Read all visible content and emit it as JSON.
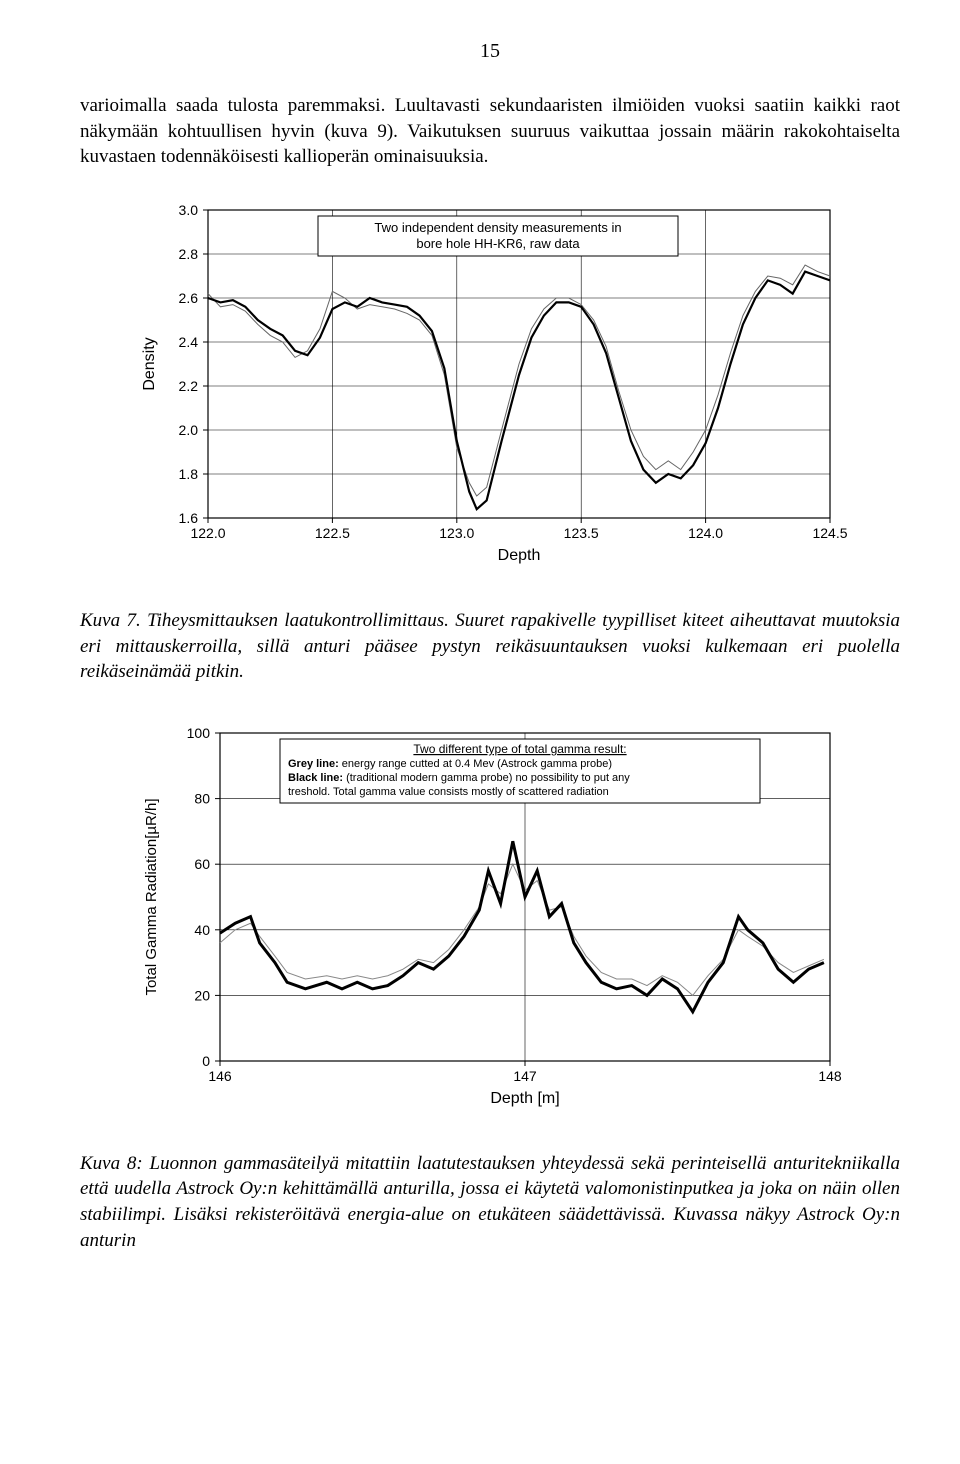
{
  "page_number": "15",
  "paragraph1": "varioimalla saada tulosta paremmaksi. Luultavasti sekundaaristen ilmiöiden vuoksi saatiin kaikki raot näkymään kohtuullisen hyvin (kuva 9). Vaikutuksen suuruus vaikuttaa jossain määrin rakokohtaiselta kuvastaen todennäköisesti kallioperän ominaisuuksia.",
  "chart1": {
    "type": "line",
    "title_box": {
      "line1": "Two independent density measurements in",
      "line2": "bore hole HH-KR6, raw data"
    },
    "ylabel": "Density",
    "xlabel": "Depth",
    "xlim": [
      122.0,
      124.5
    ],
    "ylim": [
      1.6,
      3.0
    ],
    "xticks": [
      "122.0",
      "122.5",
      "123.0",
      "123.5",
      "124.0",
      "124.5"
    ],
    "yticks": [
      "1.6",
      "1.8",
      "2.0",
      "2.2",
      "2.4",
      "2.6",
      "2.8",
      "3.0"
    ],
    "series_a_color": "#000000",
    "series_b_color": "#666666",
    "grid_color": "#000000",
    "background": "#ffffff",
    "line_width_a": 2.2,
    "line_width_b": 1.0,
    "series_a": [
      [
        122.0,
        2.6
      ],
      [
        122.05,
        2.58
      ],
      [
        122.1,
        2.59
      ],
      [
        122.15,
        2.56
      ],
      [
        122.2,
        2.5
      ],
      [
        122.25,
        2.46
      ],
      [
        122.3,
        2.43
      ],
      [
        122.35,
        2.36
      ],
      [
        122.4,
        2.34
      ],
      [
        122.45,
        2.42
      ],
      [
        122.5,
        2.55
      ],
      [
        122.55,
        2.58
      ],
      [
        122.6,
        2.56
      ],
      [
        122.65,
        2.6
      ],
      [
        122.7,
        2.58
      ],
      [
        122.75,
        2.57
      ],
      [
        122.8,
        2.56
      ],
      [
        122.85,
        2.52
      ],
      [
        122.9,
        2.45
      ],
      [
        122.95,
        2.28
      ],
      [
        123.0,
        1.95
      ],
      [
        123.05,
        1.72
      ],
      [
        123.08,
        1.64
      ],
      [
        123.12,
        1.68
      ],
      [
        123.18,
        1.95
      ],
      [
        123.25,
        2.25
      ],
      [
        123.3,
        2.42
      ],
      [
        123.35,
        2.52
      ],
      [
        123.4,
        2.58
      ],
      [
        123.45,
        2.58
      ],
      [
        123.5,
        2.56
      ],
      [
        123.55,
        2.48
      ],
      [
        123.6,
        2.35
      ],
      [
        123.65,
        2.15
      ],
      [
        123.7,
        1.95
      ],
      [
        123.75,
        1.82
      ],
      [
        123.8,
        1.76
      ],
      [
        123.85,
        1.8
      ],
      [
        123.9,
        1.78
      ],
      [
        123.95,
        1.84
      ],
      [
        124.0,
        1.94
      ],
      [
        124.05,
        2.1
      ],
      [
        124.1,
        2.3
      ],
      [
        124.15,
        2.48
      ],
      [
        124.2,
        2.6
      ],
      [
        124.25,
        2.68
      ],
      [
        124.3,
        2.66
      ],
      [
        124.35,
        2.62
      ],
      [
        124.4,
        2.72
      ],
      [
        124.45,
        2.7
      ],
      [
        124.5,
        2.68
      ]
    ],
    "series_b": [
      [
        122.0,
        2.62
      ],
      [
        122.05,
        2.56
      ],
      [
        122.1,
        2.57
      ],
      [
        122.15,
        2.54
      ],
      [
        122.2,
        2.48
      ],
      [
        122.25,
        2.43
      ],
      [
        122.3,
        2.4
      ],
      [
        122.35,
        2.33
      ],
      [
        122.4,
        2.36
      ],
      [
        122.45,
        2.46
      ],
      [
        122.5,
        2.63
      ],
      [
        122.55,
        2.6
      ],
      [
        122.6,
        2.55
      ],
      [
        122.65,
        2.57
      ],
      [
        122.7,
        2.56
      ],
      [
        122.75,
        2.55
      ],
      [
        122.8,
        2.53
      ],
      [
        122.85,
        2.5
      ],
      [
        122.9,
        2.43
      ],
      [
        122.95,
        2.25
      ],
      [
        123.0,
        1.92
      ],
      [
        123.05,
        1.76
      ],
      [
        123.08,
        1.7
      ],
      [
        123.12,
        1.74
      ],
      [
        123.18,
        2.0
      ],
      [
        123.25,
        2.3
      ],
      [
        123.3,
        2.46
      ],
      [
        123.35,
        2.55
      ],
      [
        123.4,
        2.6
      ],
      [
        123.45,
        2.6
      ],
      [
        123.5,
        2.57
      ],
      [
        123.55,
        2.5
      ],
      [
        123.6,
        2.38
      ],
      [
        123.65,
        2.18
      ],
      [
        123.7,
        2.0
      ],
      [
        123.75,
        1.88
      ],
      [
        123.8,
        1.82
      ],
      [
        123.85,
        1.86
      ],
      [
        123.9,
        1.82
      ],
      [
        123.95,
        1.9
      ],
      [
        124.0,
        2.0
      ],
      [
        124.05,
        2.16
      ],
      [
        124.1,
        2.35
      ],
      [
        124.15,
        2.52
      ],
      [
        124.2,
        2.63
      ],
      [
        124.25,
        2.7
      ],
      [
        124.3,
        2.69
      ],
      [
        124.35,
        2.66
      ],
      [
        124.4,
        2.75
      ],
      [
        124.45,
        2.72
      ],
      [
        124.5,
        2.7
      ]
    ]
  },
  "caption1": "Kuva 7. Tiheysmittauksen laatukontrollimittaus. Suuret rapakivelle tyypilliset kiteet aiheuttavat muutoksia eri mittauskerroilla, sillä anturi pääsee pystyn reikäsuuntauksen vuoksi kulkemaan eri puolella reikäseinämää pitkin.",
  "chart2": {
    "type": "line",
    "title_box": {
      "head": "Two different type of total gamma result:",
      "grey_label": "Grey line:",
      "grey_text": " energy range cutted at 0.4 Mev (Astrock gamma probe)",
      "black_label": "Black line:",
      "black_text": " (traditional modern gamma probe) no possibility to put any treshold. Total gamma value consists mostly of scattered radiation"
    },
    "ylabel": "Total Gamma Radiation[µR/h]",
    "xlabel": "Depth [m]",
    "xlim": [
      146,
      148
    ],
    "ylim": [
      0,
      100
    ],
    "xticks": [
      "146",
      "147",
      "148"
    ],
    "yticks": [
      "0",
      "20",
      "40",
      "60",
      "80",
      "100"
    ],
    "series_a_color": "#000000",
    "series_b_color": "#888888",
    "grid_color": "#000000",
    "background": "#ffffff",
    "line_width_a": 3.0,
    "line_width_b": 1.0,
    "series_a": [
      [
        146.0,
        39
      ],
      [
        146.05,
        42
      ],
      [
        146.1,
        44
      ],
      [
        146.13,
        36
      ],
      [
        146.18,
        30
      ],
      [
        146.22,
        24
      ],
      [
        146.28,
        22
      ],
      [
        146.35,
        24
      ],
      [
        146.4,
        22
      ],
      [
        146.45,
        24
      ],
      [
        146.5,
        22
      ],
      [
        146.55,
        23
      ],
      [
        146.6,
        26
      ],
      [
        146.65,
        30
      ],
      [
        146.7,
        28
      ],
      [
        146.75,
        32
      ],
      [
        146.8,
        38
      ],
      [
        146.85,
        46
      ],
      [
        146.88,
        58
      ],
      [
        146.92,
        48
      ],
      [
        146.96,
        67
      ],
      [
        147.0,
        50
      ],
      [
        147.04,
        58
      ],
      [
        147.08,
        44
      ],
      [
        147.12,
        48
      ],
      [
        147.16,
        36
      ],
      [
        147.2,
        30
      ],
      [
        147.25,
        24
      ],
      [
        147.3,
        22
      ],
      [
        147.35,
        23
      ],
      [
        147.4,
        20
      ],
      [
        147.45,
        25
      ],
      [
        147.5,
        22
      ],
      [
        147.55,
        15
      ],
      [
        147.6,
        24
      ],
      [
        147.65,
        30
      ],
      [
        147.7,
        44
      ],
      [
        147.73,
        40
      ],
      [
        147.78,
        36
      ],
      [
        147.83,
        28
      ],
      [
        147.88,
        24
      ],
      [
        147.93,
        28
      ],
      [
        147.98,
        30
      ]
    ],
    "series_b": [
      [
        146.0,
        36
      ],
      [
        146.05,
        40
      ],
      [
        146.1,
        42
      ],
      [
        146.13,
        38
      ],
      [
        146.18,
        32
      ],
      [
        146.22,
        27
      ],
      [
        146.28,
        25
      ],
      [
        146.35,
        26
      ],
      [
        146.4,
        25
      ],
      [
        146.45,
        26
      ],
      [
        146.5,
        25
      ],
      [
        146.55,
        26
      ],
      [
        146.6,
        28
      ],
      [
        146.65,
        31
      ],
      [
        146.7,
        30
      ],
      [
        146.75,
        34
      ],
      [
        146.8,
        40
      ],
      [
        146.85,
        47
      ],
      [
        146.88,
        54
      ],
      [
        146.92,
        51
      ],
      [
        146.96,
        60
      ],
      [
        147.0,
        52
      ],
      [
        147.04,
        55
      ],
      [
        147.08,
        46
      ],
      [
        147.12,
        47
      ],
      [
        147.16,
        38
      ],
      [
        147.2,
        32
      ],
      [
        147.25,
        27
      ],
      [
        147.3,
        25
      ],
      [
        147.35,
        25
      ],
      [
        147.4,
        23
      ],
      [
        147.45,
        26
      ],
      [
        147.5,
        24
      ],
      [
        147.55,
        20
      ],
      [
        147.6,
        26
      ],
      [
        147.65,
        31
      ],
      [
        147.7,
        40
      ],
      [
        147.73,
        38
      ],
      [
        147.78,
        35
      ],
      [
        147.83,
        30
      ],
      [
        147.88,
        27
      ],
      [
        147.93,
        29
      ],
      [
        147.98,
        31
      ]
    ]
  },
  "caption2": "Kuva 8: Luonnon gammasäteilyä mitattiin laatutestauksen yhteydessä sekä perinteisellä anturitekniikalla että uudella Astrock Oy:n kehittämällä anturilla, jossa ei käytetä valomonistinputkea ja joka on näin ollen stabiilimpi. Lisäksi rekisteröitävä energia-alue on etukäteen säädettävissä. Kuvassa näkyy Astrock Oy:n anturin"
}
